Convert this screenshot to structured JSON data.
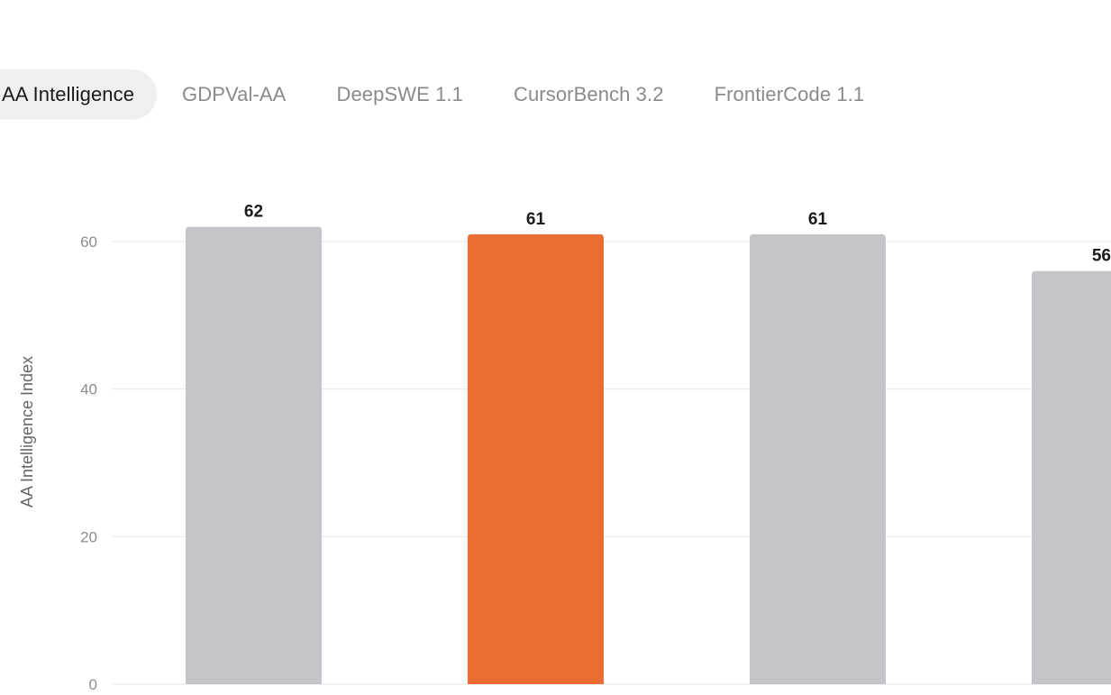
{
  "tabs": [
    {
      "label": "AA Intelligence",
      "active": true
    },
    {
      "label": "GDPVal-AA",
      "active": false
    },
    {
      "label": "DeepSWE 1.1",
      "active": false
    },
    {
      "label": "CursorBench 3.2",
      "active": false
    },
    {
      "label": "FrontierCode 1.1",
      "active": false
    }
  ],
  "colors": {
    "highlight": "#ea6d33",
    "bar": "#c4c5c9",
    "grid": "#e9e9e9"
  },
  "chart_data": {
    "type": "bar",
    "ylabel": "AA Intelligence Index",
    "ylim": [
      0,
      60
    ],
    "yticks": [
      0,
      20,
      40,
      60
    ],
    "grid": true,
    "values": [
      62,
      61,
      61,
      56
    ],
    "highlight_index": 1
  }
}
